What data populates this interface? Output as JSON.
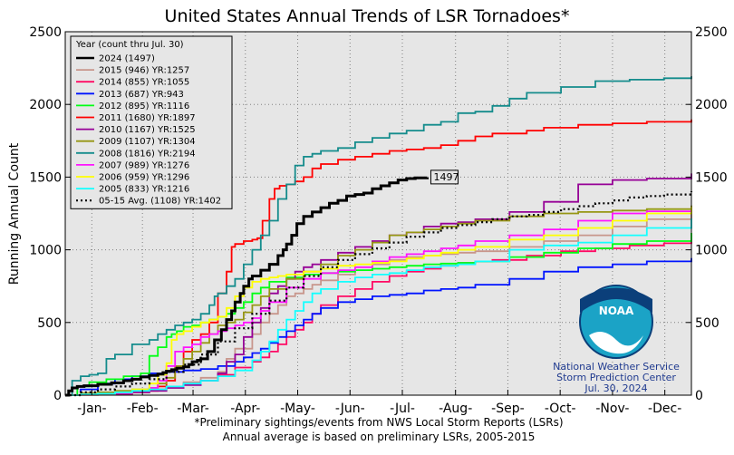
{
  "chart_data": {
    "type": "line",
    "title": "United States Annual Trends of LSR Tornadoes*",
    "ylabel": "Running Annual Count",
    "xlabel": "",
    "ylim": [
      0,
      2500
    ],
    "xlim": [
      1,
      366
    ],
    "y_ticks": [
      0,
      500,
      1000,
      1500,
      2000,
      2500
    ],
    "month_labels": [
      "-Jan-",
      "-Feb-",
      "-Mar-",
      "-Apr-",
      "-May-",
      "-Jun-",
      "-Jul-",
      "-Aug-",
      "-Sep-",
      "-Oct-",
      "-Nov-",
      "-Dec-"
    ],
    "grid": true,
    "legend_title": "Year (count thru Jul. 30)",
    "legend_position": "top-left",
    "footnote1": "*Preliminary sightings/events from NWS Local Storm Reports (LSRs)",
    "footnote2": "Annual average is based on preliminary LSRs, 2005-2015",
    "annotation": {
      "text": "1497",
      "x": 212,
      "y": 1497
    },
    "logo": {
      "label": "NOAA",
      "line1": "National Weather Service",
      "line2": "Storm Prediction Center",
      "line3": "Jul. 30, 2024"
    },
    "series": [
      {
        "name": "2024 (1497)",
        "color": "#000000",
        "width": 3,
        "dash": "",
        "x": [
          1,
          3,
          5,
          8,
          12,
          20,
          28,
          35,
          40,
          45,
          50,
          55,
          58,
          60,
          63,
          66,
          70,
          73,
          75,
          78,
          80,
          84,
          88,
          92,
          95,
          98,
          100,
          103,
          105,
          108,
          110,
          115,
          120,
          125,
          128,
          130,
          133,
          136,
          140,
          145,
          150,
          155,
          160,
          165,
          170,
          175,
          180,
          185,
          190,
          195,
          200,
          205,
          212
        ],
        "y": [
          0,
          30,
          50,
          60,
          65,
          75,
          85,
          100,
          110,
          125,
          135,
          145,
          155,
          165,
          175,
          185,
          195,
          210,
          230,
          240,
          250,
          300,
          380,
          450,
          520,
          580,
          640,
          700,
          750,
          800,
          820,
          860,
          900,
          960,
          1000,
          1040,
          1100,
          1180,
          1230,
          1260,
          1290,
          1320,
          1340,
          1370,
          1380,
          1390,
          1420,
          1440,
          1460,
          1480,
          1490,
          1495,
          1497
        ]
      },
      {
        "name": "2015 (946) YR:1257",
        "color": "#c8968c",
        "width": 1.8,
        "dash": "",
        "x": [
          1,
          10,
          20,
          30,
          40,
          50,
          60,
          70,
          80,
          90,
          95,
          100,
          110,
          115,
          120,
          125,
          130,
          135,
          140,
          145,
          150,
          160,
          170,
          180,
          190,
          200,
          210,
          220,
          230,
          240,
          260,
          280,
          300,
          320,
          340,
          366
        ],
        "y": [
          0,
          5,
          15,
          20,
          30,
          40,
          60,
          90,
          120,
          160,
          250,
          320,
          420,
          500,
          560,
          620,
          680,
          700,
          730,
          760,
          790,
          830,
          860,
          900,
          930,
          950,
          960,
          970,
          980,
          990,
          1020,
          1060,
          1100,
          1160,
          1210,
          1257
        ]
      },
      {
        "name": "2014 (855) YR:1055",
        "color": "#ff0a64",
        "width": 1.8,
        "dash": "",
        "x": [
          1,
          10,
          20,
          30,
          40,
          50,
          60,
          70,
          80,
          90,
          100,
          110,
          115,
          120,
          125,
          130,
          135,
          140,
          145,
          150,
          160,
          170,
          180,
          190,
          200,
          210,
          220,
          230,
          240,
          250,
          270,
          290,
          310,
          330,
          350,
          366
        ],
        "y": [
          0,
          3,
          5,
          10,
          25,
          40,
          60,
          80,
          100,
          140,
          190,
          230,
          260,
          300,
          350,
          400,
          450,
          500,
          560,
          620,
          680,
          730,
          780,
          820,
          850,
          870,
          890,
          910,
          920,
          930,
          960,
          990,
          1010,
          1030,
          1045,
          1055
        ]
      },
      {
        "name": "2013 (687) YR:943",
        "color": "#0014ff",
        "width": 1.8,
        "dash": "",
        "x": [
          1,
          10,
          20,
          30,
          40,
          50,
          60,
          70,
          80,
          90,
          100,
          105,
          110,
          115,
          120,
          125,
          130,
          135,
          140,
          145,
          150,
          160,
          170,
          180,
          190,
          200,
          210,
          220,
          230,
          240,
          260,
          280,
          300,
          320,
          340,
          366
        ],
        "y": [
          0,
          40,
          80,
          110,
          130,
          150,
          160,
          170,
          180,
          200,
          230,
          260,
          290,
          320,
          360,
          400,
          440,
          480,
          520,
          560,
          600,
          640,
          660,
          680,
          690,
          700,
          720,
          730,
          740,
          760,
          800,
          850,
          880,
          900,
          920,
          943
        ]
      },
      {
        "name": "2012 (895) YR:1116",
        "color": "#00ff14",
        "width": 1.8,
        "dash": "",
        "x": [
          1,
          8,
          15,
          25,
          35,
          45,
          50,
          55,
          60,
          63,
          66,
          70,
          75,
          80,
          85,
          90,
          95,
          100,
          105,
          110,
          115,
          120,
          130,
          140,
          150,
          160,
          170,
          180,
          190,
          200,
          210,
          220,
          230,
          240,
          260,
          280,
          300,
          320,
          340,
          366
        ],
        "y": [
          0,
          60,
          90,
          110,
          130,
          150,
          270,
          330,
          400,
          420,
          440,
          470,
          480,
          500,
          520,
          540,
          560,
          600,
          640,
          700,
          740,
          780,
          810,
          830,
          840,
          850,
          860,
          870,
          880,
          890,
          900,
          905,
          910,
          920,
          950,
          980,
          1010,
          1040,
          1060,
          1116
        ]
      },
      {
        "name": "2011 (1680) YR:1897",
        "color": "#ff0000",
        "width": 1.8,
        "dash": "",
        "x": [
          1,
          10,
          20,
          30,
          40,
          50,
          55,
          60,
          65,
          70,
          75,
          80,
          85,
          90,
          95,
          98,
          100,
          105,
          110,
          113,
          116,
          120,
          123,
          126,
          130,
          135,
          140,
          145,
          150,
          160,
          170,
          180,
          190,
          200,
          210,
          220,
          230,
          240,
          250,
          260,
          270,
          280,
          300,
          320,
          340,
          366
        ],
        "y": [
          0,
          2,
          5,
          10,
          20,
          30,
          60,
          100,
          200,
          300,
          380,
          420,
          500,
          700,
          850,
          1020,
          1040,
          1060,
          1070,
          1080,
          1200,
          1350,
          1420,
          1440,
          1450,
          1470,
          1500,
          1560,
          1590,
          1620,
          1640,
          1660,
          1680,
          1690,
          1700,
          1720,
          1750,
          1780,
          1800,
          1800,
          1820,
          1840,
          1860,
          1870,
          1880,
          1897
        ]
      },
      {
        "name": "2010 (1167) YR:1525",
        "color": "#960096",
        "width": 1.8,
        "dash": "",
        "x": [
          1,
          10,
          20,
          30,
          40,
          50,
          60,
          70,
          80,
          90,
          95,
          100,
          105,
          110,
          115,
          120,
          125,
          130,
          135,
          140,
          145,
          150,
          160,
          170,
          180,
          190,
          200,
          210,
          220,
          230,
          240,
          260,
          280,
          300,
          320,
          340,
          366
        ],
        "y": [
          0,
          3,
          5,
          10,
          20,
          30,
          50,
          70,
          100,
          150,
          230,
          280,
          400,
          500,
          600,
          700,
          750,
          800,
          850,
          880,
          900,
          930,
          980,
          1020,
          1060,
          1100,
          1120,
          1160,
          1180,
          1190,
          1210,
          1260,
          1330,
          1450,
          1480,
          1490,
          1525
        ]
      },
      {
        "name": "2009 (1107) YR:1304",
        "color": "#969614",
        "width": 1.8,
        "dash": "",
        "x": [
          1,
          10,
          20,
          30,
          40,
          50,
          55,
          60,
          65,
          70,
          75,
          80,
          85,
          90,
          95,
          100,
          105,
          110,
          115,
          120,
          130,
          140,
          150,
          160,
          170,
          180,
          190,
          200,
          210,
          220,
          230,
          240,
          260,
          280,
          300,
          320,
          340,
          366
        ],
        "y": [
          0,
          15,
          20,
          30,
          40,
          50,
          80,
          120,
          200,
          250,
          300,
          360,
          420,
          480,
          500,
          520,
          570,
          620,
          680,
          730,
          800,
          850,
          900,
          960,
          1000,
          1050,
          1100,
          1120,
          1140,
          1160,
          1180,
          1200,
          1230,
          1250,
          1260,
          1270,
          1280,
          1304
        ]
      },
      {
        "name": "2008 (1816) YR:2194",
        "color": "#148c8c",
        "width": 1.8,
        "dash": "",
        "x": [
          1,
          5,
          10,
          15,
          20,
          25,
          30,
          40,
          50,
          55,
          60,
          65,
          70,
          75,
          80,
          85,
          88,
          90,
          95,
          100,
          105,
          110,
          115,
          120,
          125,
          130,
          135,
          140,
          145,
          150,
          160,
          170,
          180,
          190,
          200,
          210,
          220,
          230,
          240,
          250,
          260,
          270,
          290,
          310,
          330,
          350,
          366
        ],
        "y": [
          0,
          100,
          130,
          140,
          150,
          250,
          280,
          350,
          380,
          420,
          450,
          480,
          500,
          520,
          560,
          620,
          680,
          700,
          750,
          800,
          900,
          1000,
          1100,
          1200,
          1350,
          1450,
          1580,
          1640,
          1660,
          1680,
          1700,
          1740,
          1770,
          1800,
          1820,
          1860,
          1880,
          1940,
          1950,
          1990,
          2040,
          2080,
          2120,
          2160,
          2170,
          2180,
          2194
        ]
      },
      {
        "name": "2007 (989) YR:1276",
        "color": "#ff14ff",
        "width": 1.8,
        "dash": "",
        "x": [
          1,
          10,
          20,
          30,
          40,
          50,
          55,
          60,
          65,
          70,
          75,
          80,
          85,
          90,
          95,
          100,
          105,
          110,
          115,
          120,
          130,
          140,
          150,
          160,
          170,
          180,
          190,
          200,
          210,
          220,
          230,
          240,
          260,
          280,
          300,
          320,
          340,
          366
        ],
        "y": [
          0,
          5,
          10,
          15,
          30,
          50,
          100,
          200,
          300,
          330,
          350,
          400,
          420,
          440,
          460,
          480,
          500,
          530,
          580,
          640,
          740,
          800,
          840,
          860,
          880,
          920,
          950,
          970,
          990,
          1010,
          1030,
          1060,
          1100,
          1140,
          1200,
          1250,
          1265,
          1276
        ]
      },
      {
        "name": "2006 (959) YR:1296",
        "color": "#ffff00",
        "width": 1.8,
        "dash": "",
        "x": [
          1,
          10,
          20,
          30,
          40,
          50,
          55,
          60,
          63,
          66,
          70,
          75,
          80,
          85,
          90,
          95,
          100,
          105,
          110,
          115,
          120,
          125,
          130,
          140,
          150,
          160,
          170,
          180,
          190,
          200,
          210,
          220,
          230,
          240,
          260,
          280,
          300,
          320,
          340,
          366
        ],
        "y": [
          0,
          5,
          10,
          20,
          40,
          80,
          140,
          220,
          380,
          420,
          440,
          470,
          500,
          520,
          540,
          600,
          680,
          740,
          780,
          800,
          810,
          820,
          830,
          850,
          870,
          890,
          900,
          910,
          920,
          940,
          960,
          980,
          1000,
          1020,
          1070,
          1100,
          1150,
          1200,
          1250,
          1296
        ]
      },
      {
        "name": "2005 (833) YR:1216",
        "color": "#14ffff",
        "width": 1.8,
        "dash": "",
        "x": [
          1,
          10,
          20,
          30,
          40,
          50,
          60,
          70,
          80,
          90,
          100,
          110,
          115,
          120,
          125,
          130,
          135,
          140,
          145,
          150,
          160,
          170,
          180,
          190,
          200,
          210,
          220,
          230,
          240,
          260,
          280,
          300,
          320,
          340,
          366
        ],
        "y": [
          0,
          5,
          10,
          20,
          30,
          40,
          60,
          80,
          100,
          130,
          170,
          240,
          300,
          370,
          450,
          520,
          580,
          640,
          700,
          730,
          780,
          810,
          830,
          840,
          860,
          880,
          890,
          900,
          920,
          1000,
          1030,
          1050,
          1100,
          1150,
          1216
        ]
      },
      {
        "name": "05-15 Avg. (1108) YR:1402",
        "color": "#000000",
        "width": 2.2,
        "dash": "2,3",
        "x": [
          1,
          10,
          20,
          30,
          40,
          50,
          60,
          70,
          80,
          90,
          100,
          110,
          120,
          130,
          140,
          150,
          160,
          170,
          180,
          190,
          200,
          210,
          220,
          230,
          240,
          250,
          260,
          270,
          280,
          290,
          300,
          310,
          320,
          330,
          340,
          350,
          366
        ],
        "y": [
          0,
          20,
          40,
          60,
          80,
          110,
          160,
          210,
          280,
          370,
          460,
          560,
          650,
          740,
          820,
          880,
          930,
          970,
          1010,
          1050,
          1090,
          1120,
          1150,
          1170,
          1190,
          1210,
          1230,
          1240,
          1260,
          1280,
          1300,
          1320,
          1340,
          1360,
          1370,
          1380,
          1402
        ]
      }
    ]
  }
}
